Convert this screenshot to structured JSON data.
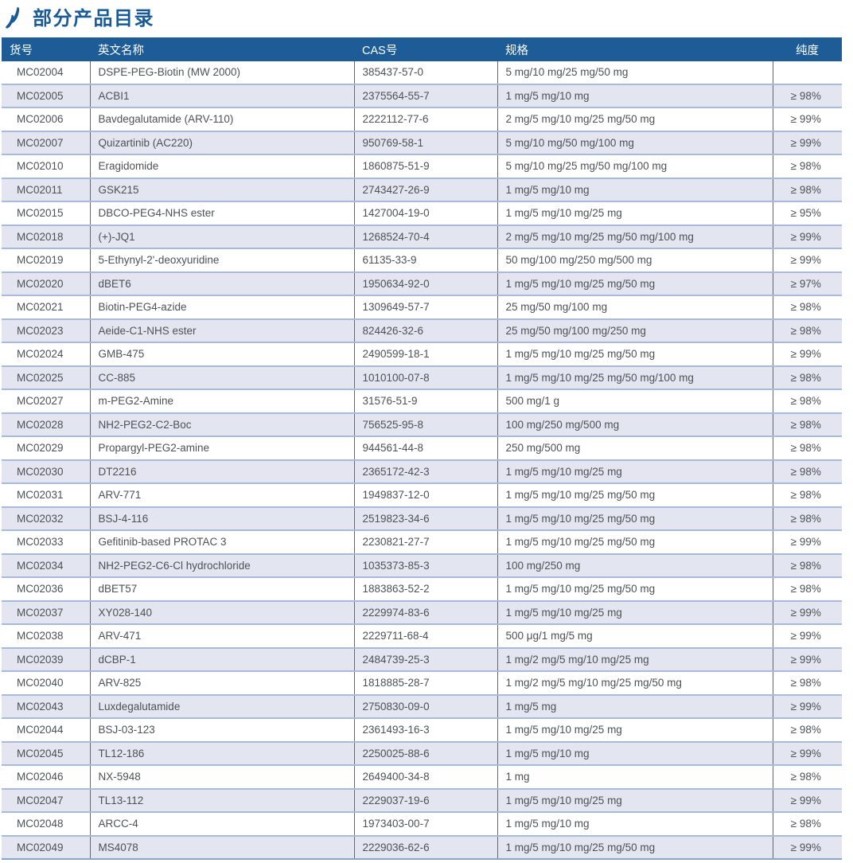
{
  "page": {
    "title": "部分产品目录"
  },
  "colors": {
    "header_bg": "#1d5c96",
    "title_color": "#1a5a96",
    "stripe": "#e3e6f1",
    "border_vertical": "#3f6fa5",
    "border_horizontal": "#a7bad7",
    "border_bottom": "#8aa4c8",
    "text_color": "#4e5154",
    "icon_color": "#1a5a96"
  },
  "icon": {
    "name": "double-slash-flame-icon"
  },
  "table": {
    "columns": [
      {
        "key": "code",
        "label": "货号"
      },
      {
        "key": "name",
        "label": "英文名称"
      },
      {
        "key": "cas",
        "label": "CAS号"
      },
      {
        "key": "spec",
        "label": "规格"
      },
      {
        "key": "purity",
        "label": "纯度"
      }
    ],
    "rows": [
      {
        "code": "MC02004",
        "name": "DSPE-PEG-Biotin (MW 2000)",
        "cas": "385437-57-0",
        "spec": "5 mg/10 mg/25 mg/50 mg",
        "purity": ""
      },
      {
        "code": "MC02005",
        "name": "ACBI1",
        "cas": "2375564-55-7",
        "spec": "1 mg/5 mg/10 mg",
        "purity": "≥ 98%"
      },
      {
        "code": "MC02006",
        "name": "Bavdegalutamide (ARV-110)",
        "cas": "2222112-77-6",
        "spec": "2 mg/5 mg/10 mg/25 mg/50 mg",
        "purity": "≥ 99%"
      },
      {
        "code": "MC02007",
        "name": "Quizartinib (AC220)",
        "cas": "950769-58-1",
        "spec": "5 mg/10 mg/50 mg/100 mg",
        "purity": "≥ 99%"
      },
      {
        "code": "MC02010",
        "name": "Eragidomide",
        "cas": "1860875-51-9",
        "spec": "5 mg/10 mg/25 mg/50 mg/100 mg",
        "purity": "≥ 98%"
      },
      {
        "code": "MC02011",
        "name": "GSK215",
        "cas": "2743427-26-9",
        "spec": "1 mg/5 mg/10 mg",
        "purity": "≥ 98%"
      },
      {
        "code": "MC02015",
        "name": "DBCO-PEG4-NHS ester",
        "cas": "1427004-19-0",
        "spec": "1 mg/5 mg/10 mg/25 mg",
        "purity": "≥ 95%"
      },
      {
        "code": "MC02018",
        "name": "(+)-JQ1",
        "cas": "1268524-70-4",
        "spec": "2 mg/5 mg/10 mg/25 mg/50 mg/100 mg",
        "purity": "≥ 99%"
      },
      {
        "code": "MC02019",
        "name": "5-Ethynyl-2'-deoxyuridine",
        "cas": "61135-33-9",
        "spec": "50 mg/100 mg/250 mg/500 mg",
        "purity": "≥ 99%"
      },
      {
        "code": "MC02020",
        "name": "dBET6",
        "cas": "1950634-92-0",
        "spec": "1 mg/5 mg/10 mg/25 mg/50 mg",
        "purity": "≥ 97%"
      },
      {
        "code": "MC02021",
        "name": "Biotin-PEG4-azide",
        "cas": "1309649-57-7",
        "spec": "25 mg/50 mg/100 mg",
        "purity": "≥ 98%"
      },
      {
        "code": "MC02023",
        "name": "Aeide-C1-NHS ester",
        "cas": "824426-32-6",
        "spec": "25 mg/50 mg/100 mg/250 mg",
        "purity": "≥ 98%"
      },
      {
        "code": "MC02024",
        "name": "GMB-475",
        "cas": "2490599-18-1",
        "spec": "1 mg/5 mg/10 mg/25 mg/50 mg",
        "purity": "≥ 99%"
      },
      {
        "code": "MC02025",
        "name": "CC-885",
        "cas": "1010100-07-8",
        "spec": "1 mg/5 mg/10 mg/25 mg/50 mg/100 mg",
        "purity": "≥ 98%"
      },
      {
        "code": "MC02027",
        "name": "m-PEG2-Amine",
        "cas": "31576-51-9",
        "spec": "500 mg/1 g",
        "purity": "≥ 98%"
      },
      {
        "code": "MC02028",
        "name": "NH2-PEG2-C2-Boc",
        "cas": "756525-95-8",
        "spec": "100 mg/250 mg/500 mg",
        "purity": "≥ 98%"
      },
      {
        "code": "MC02029",
        "name": "Propargyl-PEG2-amine",
        "cas": "944561-44-8",
        "spec": "250 mg/500 mg",
        "purity": "≥ 98%"
      },
      {
        "code": "MC02030",
        "name": "DT2216",
        "cas": "2365172-42-3",
        "spec": "1 mg/5 mg/10 mg/25 mg",
        "purity": "≥ 98%"
      },
      {
        "code": "MC02031",
        "name": "ARV-771",
        "cas": "1949837-12-0",
        "spec": "1 mg/5 mg/10 mg/25 mg/50 mg",
        "purity": "≥ 98%"
      },
      {
        "code": "MC02032",
        "name": "BSJ-4-116",
        "cas": "2519823-34-6",
        "spec": "1 mg/5 mg/10 mg/25 mg/50 mg",
        "purity": "≥ 98%"
      },
      {
        "code": "MC02033",
        "name": "Gefitinib-based PROTAC 3",
        "cas": "2230821-27-7",
        "spec": "1 mg/5 mg/10 mg/25 mg/50 mg",
        "purity": "≥ 99%"
      },
      {
        "code": "MC02034",
        "name": "NH2-PEG2-C6-Cl hydrochloride",
        "cas": "1035373-85-3",
        "spec": "100 mg/250 mg",
        "purity": "≥ 98%"
      },
      {
        "code": "MC02036",
        "name": "dBET57",
        "cas": "1883863-52-2",
        "spec": "1 mg/5 mg/10 mg/25 mg/50 mg",
        "purity": "≥ 98%"
      },
      {
        "code": "MC02037",
        "name": "XY028-140",
        "cas": "2229974-83-6",
        "spec": "1 mg/5 mg/10 mg/25 mg",
        "purity": "≥ 99%"
      },
      {
        "code": "MC02038",
        "name": "ARV-471",
        "cas": "2229711-68-4",
        "spec": "500 μg/1 mg/5 mg",
        "purity": "≥ 99%"
      },
      {
        "code": "MC02039",
        "name": "dCBP-1",
        "cas": "2484739-25-3",
        "spec": "1 mg/2 mg/5 mg/10 mg/25 mg",
        "purity": "≥ 99%"
      },
      {
        "code": "MC02040",
        "name": "ARV-825",
        "cas": "1818885-28-7",
        "spec": "1 mg/2 mg/5 mg/10 mg/25 mg/50 mg",
        "purity": "≥ 98%"
      },
      {
        "code": "MC02043",
        "name": "Luxdegalutamide",
        "cas": "2750830-09-0",
        "spec": "1 mg/5 mg",
        "purity": "≥ 99%"
      },
      {
        "code": "MC02044",
        "name": "BSJ-03-123",
        "cas": "2361493-16-3",
        "spec": "1 mg/5 mg/10 mg/25 mg",
        "purity": "≥ 98%"
      },
      {
        "code": "MC02045",
        "name": "TL12-186",
        "cas": "2250025-88-6",
        "spec": "1 mg/5 mg/10 mg",
        "purity": "≥ 99%"
      },
      {
        "code": "MC02046",
        "name": "NX-5948",
        "cas": "2649400-34-8",
        "spec": "1 mg",
        "purity": "≥ 98%"
      },
      {
        "code": "MC02047",
        "name": "TL13-112",
        "cas": "2229037-19-6",
        "spec": "1 mg/5 mg/10 mg/25 mg",
        "purity": "≥ 99%"
      },
      {
        "code": "MC02048",
        "name": "ARCC-4",
        "cas": "1973403-00-7",
        "spec": "1 mg/5 mg/10 mg",
        "purity": "≥ 98%"
      },
      {
        "code": "MC02049",
        "name": "MS4078",
        "cas": "2229036-62-6",
        "spec": "1 mg/5 mg/10 mg/25 mg/50 mg",
        "purity": "≥ 99%"
      }
    ]
  }
}
